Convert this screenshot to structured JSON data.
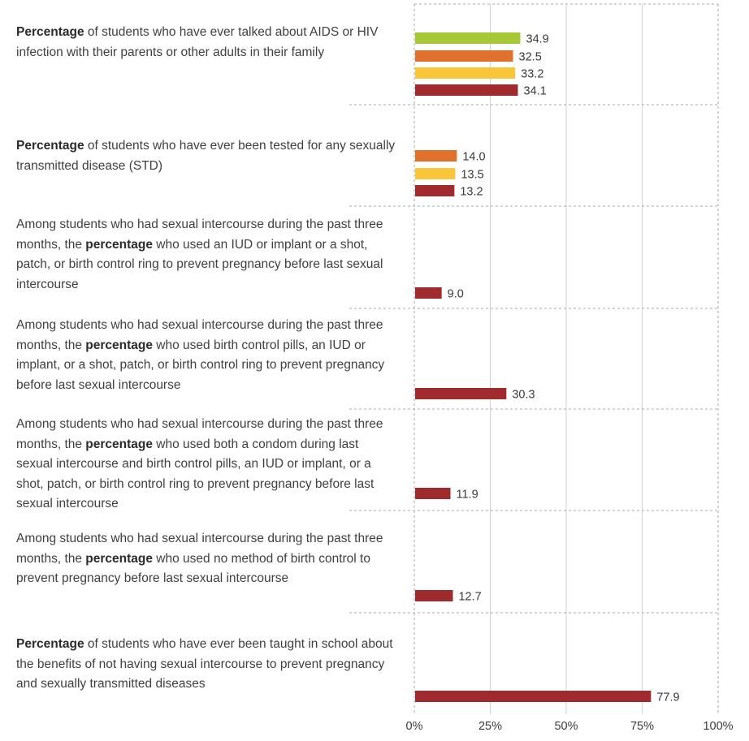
{
  "chart_data": {
    "type": "bar",
    "orientation": "horizontal",
    "xlim": [
      0,
      100
    ],
    "x_ticks": [
      "0%",
      "25%",
      "50%",
      "75%",
      "100%"
    ],
    "grid": true,
    "colors": {
      "series_a": "#a6c837",
      "series_b": "#e0712c",
      "series_c": "#f9c639",
      "series_d": "#9f2b2e"
    },
    "rows": [
      {
        "label_parts": [
          {
            "bold": "Percentage"
          },
          {
            "text": " of students who have ever talked about AIDS or HIV infection with their parents or other adults in their family"
          }
        ],
        "bars": [
          {
            "value": 34.9,
            "label": "34.9",
            "color": "#a6c837"
          },
          {
            "value": 32.5,
            "label": "32.5",
            "color": "#e0712c"
          },
          {
            "value": 33.2,
            "label": "33.2",
            "color": "#f9c639"
          },
          {
            "value": 34.1,
            "label": "34.1",
            "color": "#9f2b2e"
          }
        ]
      },
      {
        "label_parts": [
          {
            "bold": "Percentage"
          },
          {
            "text": " of students who have ever been tested for any sexually transmitted disease (STD)"
          }
        ],
        "bars": [
          {
            "value": 14.0,
            "label": "14.0",
            "color": "#e0712c"
          },
          {
            "value": 13.5,
            "label": "13.5",
            "color": "#f9c639"
          },
          {
            "value": 13.2,
            "label": "13.2",
            "color": "#9f2b2e"
          }
        ]
      },
      {
        "label_parts": [
          {
            "text": "Among students who had sexual intercourse during the past three months, the "
          },
          {
            "bold": "percentage"
          },
          {
            "text": " who used an IUD or implant or a shot, patch, or birth control ring to prevent pregnancy before last sexual intercourse"
          }
        ],
        "bars": [
          {
            "value": 9.0,
            "label": "9.0",
            "color": "#9f2b2e"
          }
        ]
      },
      {
        "label_parts": [
          {
            "text": "Among students who had sexual intercourse during the past three months, the "
          },
          {
            "bold": "percentage"
          },
          {
            "text": " who used birth control pills, an IUD or implant, or a shot, patch, or birth control ring to prevent pregnancy before last sexual intercourse"
          }
        ],
        "bars": [
          {
            "value": 30.3,
            "label": "30.3",
            "color": "#9f2b2e"
          }
        ]
      },
      {
        "label_parts": [
          {
            "text": "Among students who had sexual intercourse during the past three months, the "
          },
          {
            "bold": "percentage"
          },
          {
            "text": " who used both a condom during last sexual intercourse and birth control pills, an IUD or implant, or a shot, patch, or birth control ring to prevent pregnancy before last sexual intercourse"
          }
        ],
        "bars": [
          {
            "value": 11.9,
            "label": "11.9",
            "color": "#9f2b2e"
          }
        ]
      },
      {
        "label_parts": [
          {
            "text": "Among students who had sexual intercourse during the past three months, the "
          },
          {
            "bold": "percentage"
          },
          {
            "text": " who used no method of birth control to prevent pregnancy before last sexual intercourse"
          }
        ],
        "bars": [
          {
            "value": 12.7,
            "label": "12.7",
            "color": "#9f2b2e"
          }
        ]
      },
      {
        "label_parts": [
          {
            "bold": "Percentage"
          },
          {
            "text": " of students who have ever been taught in school about the benefits of not having sexual intercourse to prevent pregnancy and sexually transmitted diseases"
          }
        ],
        "bars": [
          {
            "value": 77.9,
            "label": "77.9",
            "color": "#9f2b2e"
          }
        ]
      }
    ]
  }
}
